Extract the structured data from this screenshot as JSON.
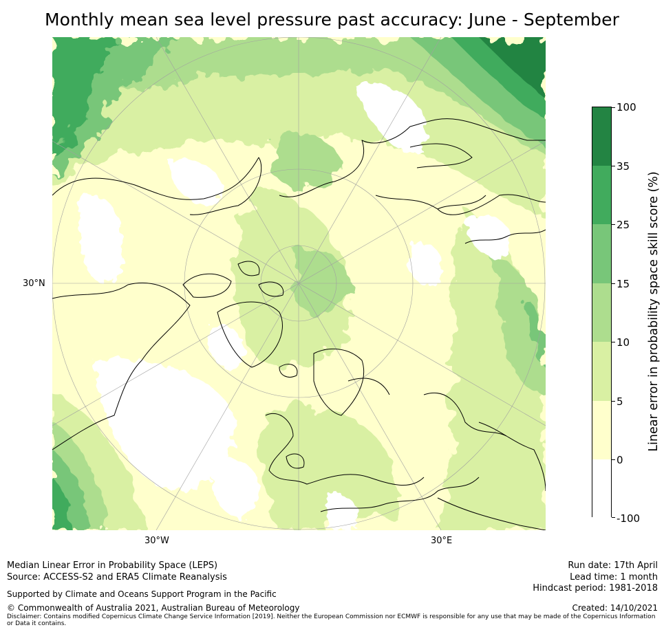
{
  "title": "Monthly mean sea level pressure past accuracy: June - September",
  "map": {
    "lat_label": "30°N",
    "lon_labels": [
      "30°W",
      "30°E"
    ],
    "colors": {
      "white": "#ffffff",
      "pale_yellow": "#ffffcc",
      "light_green": "#d9f0a3",
      "green_1": "#addd8e",
      "green_2": "#78c679",
      "green_3": "#41ab5d",
      "dark_green": "#238443",
      "coast": "#000000",
      "grid": "#a0a0a0"
    }
  },
  "colorbar": {
    "title": "Linear error in probability space skill score (%)",
    "ticks": [
      "100",
      "35",
      "25",
      "15",
      "10",
      "5",
      "0",
      "-100"
    ],
    "colors": [
      "#238443",
      "#41ab5d",
      "#78c679",
      "#addd8e",
      "#d9f0a3",
      "#ffffcc",
      "#ffffff"
    ]
  },
  "footer": {
    "method": "Median Linear Error in Probability Space (LEPS)",
    "source": "Source: ACCESS-S2 and ERA5 Climate Reanalysis",
    "support": "Supported by Climate and Oceans Support Program in the Pacific",
    "copyright": "© Commonwealth of Australia 2021, Australian Bureau of Meteorology",
    "disclaimer": "Disclaimer: Contains modified Copernicus Climate Change Service Information [2019]. Neither the European Commission nor ECMWF is responsible for any use that may be made of the Copernicus Information or Data it contains.",
    "run_date": "Run date: 17th April",
    "lead_time": "Lead time: 1 month",
    "hindcast": "Hindcast period: 1981-2018",
    "created": "Created: 14/10/2021"
  }
}
